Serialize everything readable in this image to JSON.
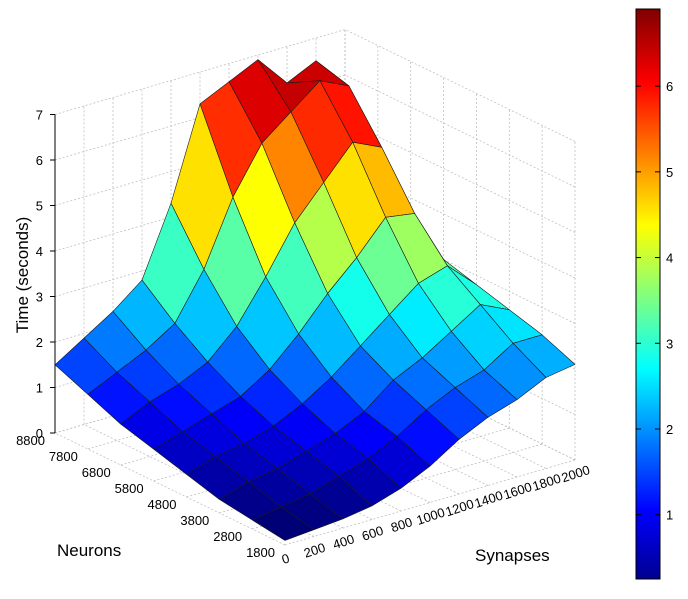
{
  "chart_data": {
    "type": "surface",
    "title": "",
    "xlabel": "Synapses",
    "ylabel": "Neurons",
    "zlabel": "Time (seconds)",
    "x_ticks": [
      "0",
      "200",
      "400",
      "600",
      "800",
      "1000",
      "1200",
      "1400",
      "1600",
      "1800",
      "2000"
    ],
    "y_ticks": [
      "1800",
      "2800",
      "3800",
      "4800",
      "5800",
      "6800",
      "7800",
      "8800"
    ],
    "z_ticks": [
      "0",
      "1",
      "2",
      "3",
      "4",
      "5",
      "6",
      "7"
    ],
    "xlim": [
      0,
      2000
    ],
    "ylim": [
      1800,
      8800
    ],
    "zlim": [
      0,
      7
    ],
    "colorbar": {
      "colormap": "jet",
      "range": [
        0.25,
        6.9
      ],
      "ticks": [
        "1",
        "2",
        "3",
        "4",
        "5",
        "6"
      ]
    },
    "synapses": [
      0,
      200,
      400,
      600,
      800,
      1000,
      1200,
      1400,
      1600,
      1800,
      2000
    ],
    "neurons": [
      1800,
      2800,
      3800,
      4800,
      5800,
      6800,
      7800,
      8800
    ],
    "time": [
      [
        0.1,
        0.15,
        0.2,
        0.3,
        0.5,
        0.8,
        1.2,
        1.5,
        1.7,
        2.0,
        2.1
      ],
      [
        0.2,
        0.3,
        0.4,
        0.6,
        0.8,
        1.1,
        1.5,
        1.8,
        2.0,
        2.4,
        2.4
      ],
      [
        0.3,
        0.5,
        0.6,
        0.8,
        1.0,
        1.3,
        1.8,
        2.1,
        2.5,
        2.9,
        2.6
      ],
      [
        0.5,
        0.7,
        0.8,
        1.0,
        1.3,
        1.7,
        2.2,
        2.7,
        3.2,
        3.4,
        2.8
      ],
      [
        0.7,
        0.9,
        1.1,
        1.3,
        1.7,
        2.3,
        3.0,
        3.6,
        4.3,
        4.2,
        3.0
      ],
      [
        0.9,
        1.2,
        1.4,
        1.7,
        2.3,
        3.2,
        4.2,
        4.9,
        5.6,
        5.3,
        3.2
      ],
      [
        1.2,
        1.5,
        1.8,
        2.2,
        3.2,
        4.6,
        5.6,
        6.1,
        6.6,
        6.3,
        3.4
      ],
      [
        1.5,
        1.9,
        2.3,
        2.8,
        4.3,
        6.3,
        6.6,
        6.9,
        6.2,
        6.5,
        3.5
      ]
    ]
  }
}
